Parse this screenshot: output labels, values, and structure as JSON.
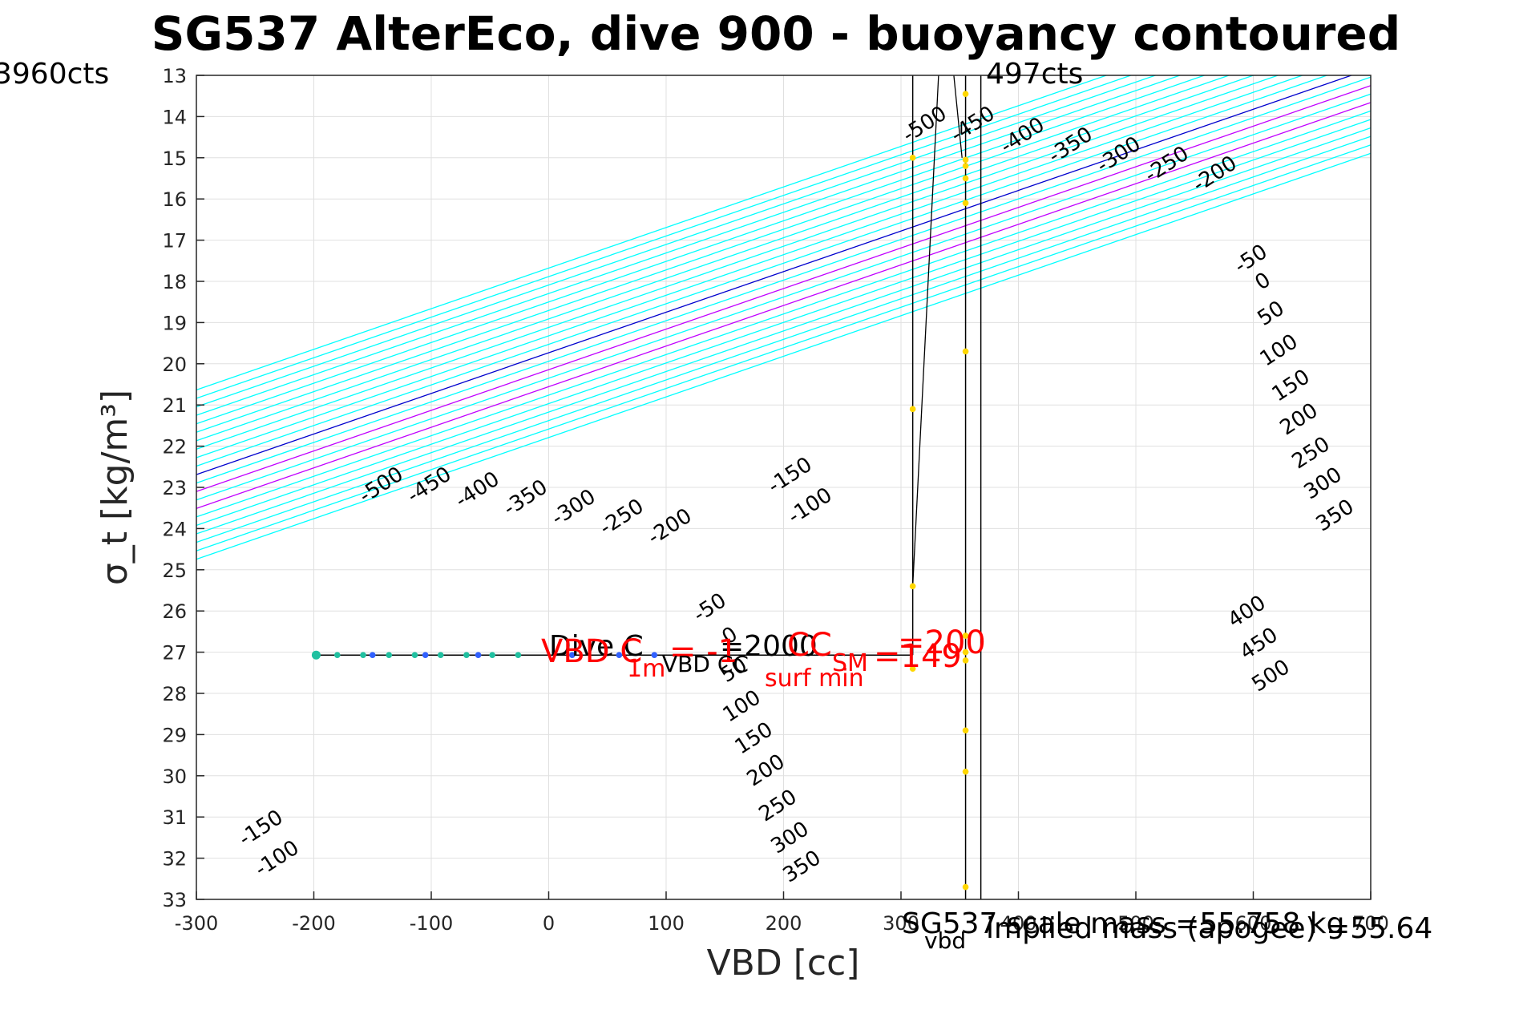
{
  "chart_data": {
    "type": "scatter",
    "title": "SG537 AlterEco, dive 900 - buoyancy contoured",
    "xlabel": "VBD [cc]",
    "ylabel": "σ_t [kg/m³]",
    "xlim": [
      -300,
      700
    ],
    "ylim": [
      13,
      33
    ],
    "y_reversed": true,
    "grid": true,
    "x_ticks": [
      "-300",
      "-200",
      "-100",
      "0",
      "100",
      "200",
      "300",
      "400",
      "500",
      "600",
      "700"
    ],
    "y_ticks": [
      "13",
      "14",
      "15",
      "16",
      "17",
      "18",
      "19",
      "20",
      "21",
      "22",
      "23",
      "24",
      "25",
      "26",
      "27",
      "28",
      "29",
      "30",
      "31",
      "32",
      "33"
    ],
    "contours": {
      "levels": [
        -500,
        -450,
        -400,
        -350,
        -300,
        -250,
        -200,
        -150,
        -100,
        -50,
        0,
        50,
        100,
        150,
        200,
        250,
        300,
        350,
        400,
        450,
        500
      ],
      "slope_vbd_per_sigma": 21.4,
      "zero_line": [
        [
          -185,
          33
        ],
        [
          700,
          16.4
        ]
      ],
      "colors": {
        "default": "#00ffff",
        "zero": "#0000cd",
        "highlight": "#c000ff"
      },
      "highlight_levels": [
        100,
        200
      ]
    },
    "corner_labels": {
      "left": "3960cts",
      "right": "497cts"
    },
    "bottom_labels": {
      "vbd_sub": "vbd",
      "scale_mass": "SG537 scale mass =55.758 kg",
      "implied_mass": "implied mass (apogee) =55.64"
    },
    "annotations": {
      "dive_c": "Dive C",
      "dive_c_value": "=2000",
      "vbd_cc_red": "VBD C",
      "vbd_cc_red_value": "= -1",
      "cc_surf_label": "CC",
      "cc_surf_value": "=200",
      "sm_cc_value": "=149",
      "red_1m": "1m",
      "vbd_cc_black": "VBD CC",
      "surf_min": "surf min",
      "sm": "SM"
    },
    "series": [
      {
        "color": "#20c0a0",
        "points": [
          [
            -198,
            27.07
          ],
          [
            -180,
            27.07
          ],
          [
            -158,
            27.07
          ],
          [
            -136,
            27.07
          ],
          [
            -114,
            27.07
          ],
          [
            -92,
            27.07
          ],
          [
            -70,
            27.07
          ],
          [
            -48,
            27.07
          ],
          [
            -26,
            27.07
          ]
        ]
      },
      {
        "color": "#3060ff",
        "points": [
          [
            -150,
            27.07
          ],
          [
            -105,
            27.07
          ],
          [
            -60,
            27.07
          ],
          [
            20,
            27.07
          ],
          [
            60,
            27.07
          ],
          [
            90,
            27.07
          ]
        ]
      },
      {
        "color": "#ffd700",
        "points": [
          [
            310,
            15.0
          ],
          [
            310,
            21.1
          ],
          [
            310,
            25.4
          ],
          [
            310,
            27.4
          ],
          [
            355,
            13.45
          ],
          [
            355,
            15.05
          ],
          [
            355,
            15.2
          ],
          [
            355,
            15.5
          ],
          [
            355,
            16.1
          ],
          [
            355,
            19.7
          ],
          [
            355,
            26.6
          ],
          [
            355,
            27.0
          ],
          [
            355,
            27.2
          ],
          [
            355,
            28.9
          ],
          [
            355,
            29.9
          ],
          [
            355,
            32.7
          ]
        ]
      }
    ]
  }
}
